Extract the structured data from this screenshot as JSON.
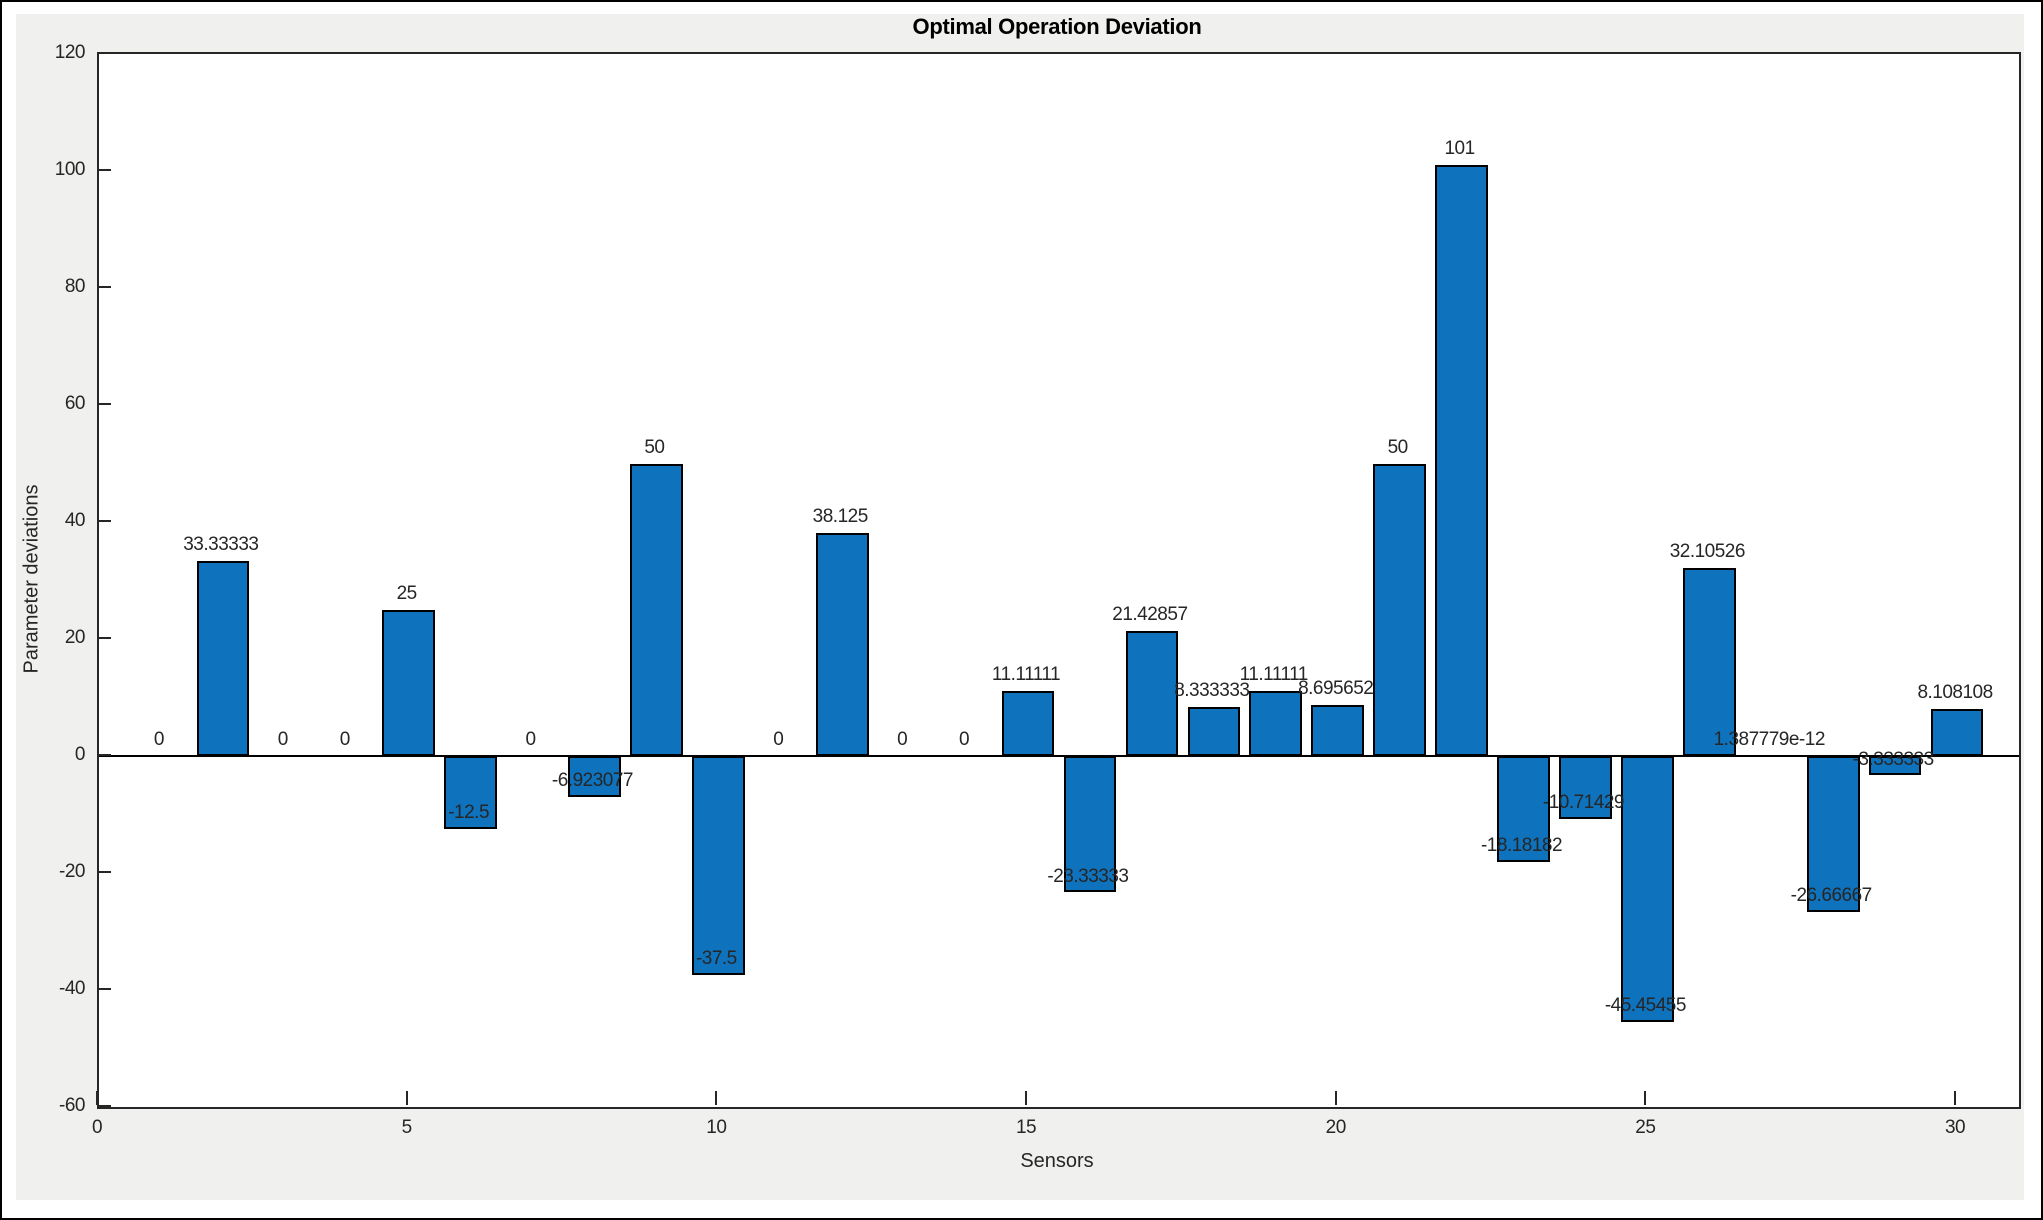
{
  "chart_data": {
    "type": "bar",
    "title": "Optimal Operation Deviation",
    "xlabel": "Sensors",
    "ylabel": "Parameter deviations",
    "xlim": [
      0,
      31
    ],
    "ylim": [
      -60,
      120
    ],
    "xticks": [
      0,
      5,
      10,
      15,
      20,
      25,
      30
    ],
    "yticks": [
      -60,
      -40,
      -20,
      0,
      20,
      40,
      60,
      80,
      100,
      120
    ],
    "grid": false,
    "legend": null,
    "bar_width_frac": 0.85,
    "colors": {
      "bar_fill": "#0E72BD",
      "bar_edge": "#000000",
      "axis": "#262626",
      "tick_text": "#262626",
      "title_text": "#000000",
      "figure_bg": "#F0F0EE",
      "plot_bg": "#FFFFFF",
      "baseline": "#000000"
    },
    "x": [
      1,
      2,
      3,
      4,
      5,
      6,
      7,
      8,
      9,
      10,
      11,
      12,
      13,
      14,
      15,
      16,
      17,
      18,
      19,
      20,
      21,
      22,
      23,
      24,
      25,
      26,
      27,
      28,
      29,
      30
    ],
    "values": [
      0,
      33.33333,
      0,
      0,
      25,
      -12.5,
      0,
      -6.923077,
      50,
      -37.5,
      0,
      38.125,
      0,
      0,
      11.11111,
      -23.33333,
      21.42857,
      8.333333,
      11.11111,
      8.695652,
      50,
      101,
      -18.18182,
      -10.71429,
      -45.45455,
      32.10526,
      1.387779e-12,
      -26.66667,
      -3.333333,
      8.108108
    ],
    "value_labels": [
      "0",
      "33.33333",
      "0",
      "0",
      "25",
      "-12.5",
      "0",
      "-6.923077",
      "50",
      "-37.5",
      "0",
      "38.125",
      "0",
      "0",
      "11.11111",
      "-23.33333",
      "21.42857",
      "8.333333",
      "11.11111",
      "8.695652",
      "50",
      "101",
      "-18.18182",
      "-10.71429",
      "-45.45455",
      "32.10526",
      "1.387779e-12",
      "-26.66667",
      "-3.333333",
      "8.108108"
    ]
  }
}
